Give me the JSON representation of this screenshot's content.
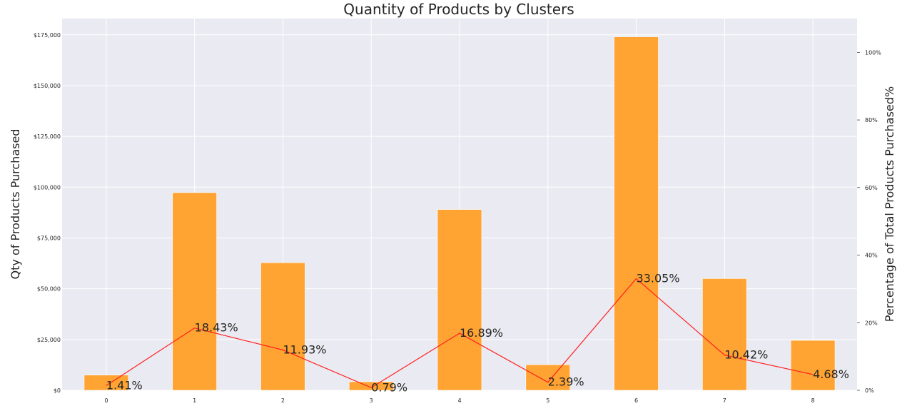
{
  "chart_data": {
    "type": "bar",
    "title": "Quantity of Products by Clusters",
    "xlabel": "",
    "ylabel": "Qty of Products Purchased",
    "ylabel_right": "Percentage of Total Products Purchased%",
    "categories": [
      "0",
      "1",
      "2",
      "3",
      "4",
      "5",
      "6",
      "7",
      "8"
    ],
    "ylim": [
      0,
      183000
    ],
    "y2lim": [
      0,
      110
    ],
    "yticks": [
      0,
      25000,
      50000,
      75000,
      100000,
      125000,
      150000,
      175000
    ],
    "ytick_labels": [
      "$0",
      "$25,000",
      "$50,000",
      "$75,000",
      "$100,000",
      "$125,000",
      "$150,000",
      "$175,000"
    ],
    "y2ticks": [
      0,
      20,
      40,
      60,
      80,
      100
    ],
    "y2tick_labels": [
      "0%",
      "20%",
      "40%",
      "60%",
      "80%",
      "100%"
    ],
    "grid": true,
    "series": [
      {
        "type": "bar",
        "values": [
          7500,
          97300,
          62800,
          4200,
          89000,
          12600,
          174000,
          55000,
          24600
        ],
        "color": "#ffa332"
      },
      {
        "type": "line",
        "axis": "right",
        "values": [
          1.41,
          18.43,
          11.93,
          0.79,
          16.89,
          2.39,
          33.05,
          10.42,
          4.68
        ],
        "data_labels": [
          "1.41%",
          "18.43%",
          "11.93%",
          "0.79%",
          "16.89%",
          "2.39%",
          "33.05%",
          "10.42%",
          "4.68%"
        ],
        "color": "#ff2020"
      }
    ]
  },
  "colors": {
    "plot_background": "#eaeaf2",
    "grid": "#ffffff",
    "bar": "#ffa332",
    "line": "#ff2020",
    "text": "#262626"
  }
}
